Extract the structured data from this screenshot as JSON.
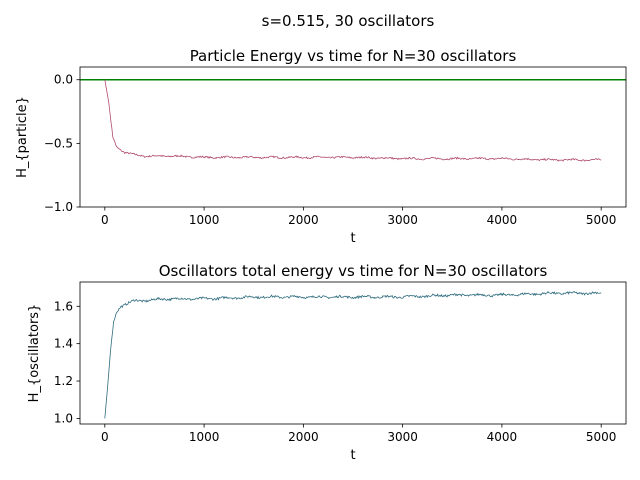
{
  "suptitle": "s=0.515, 30 oscillators",
  "chart_data": [
    {
      "type": "line",
      "title": "Particle Energy vs time for N=30 oscillators",
      "xlabel": "t",
      "ylabel": "H_{particle}",
      "xlim": [
        -250,
        5250
      ],
      "ylim": [
        -1.0,
        0.1
      ],
      "xticks": [
        0,
        1000,
        2000,
        3000,
        4000,
        5000
      ],
      "yticks": [
        -1.0,
        -0.5,
        0.0
      ],
      "ytick_labels": [
        "−1.0",
        "−0.5",
        "0.0"
      ],
      "hline": {
        "y": 0.0,
        "color": "#008000"
      },
      "series": [
        {
          "color": "#b04a6e",
          "x": [
            0,
            40,
            80,
            120,
            160,
            200,
            250,
            300,
            400,
            500,
            700,
            1000,
            1500,
            2000,
            2500,
            3000,
            3500,
            4000,
            4500,
            5000
          ],
          "y": [
            0.0,
            -0.18,
            -0.45,
            -0.53,
            -0.55,
            -0.57,
            -0.58,
            -0.59,
            -0.6,
            -0.6,
            -0.6,
            -0.61,
            -0.61,
            -0.61,
            -0.61,
            -0.62,
            -0.62,
            -0.62,
            -0.63,
            -0.63
          ]
        }
      ],
      "grid": false
    },
    {
      "type": "line",
      "title": "Oscillators total energy vs time for N=30 oscillators",
      "xlabel": "t",
      "ylabel": "H_{oscillators}",
      "xlim": [
        -250,
        5250
      ],
      "ylim": [
        0.97,
        1.73
      ],
      "xticks": [
        0,
        1000,
        2000,
        3000,
        4000,
        5000
      ],
      "yticks": [
        1.0,
        1.2,
        1.4,
        1.6
      ],
      "ytick_labels": [
        "1.0",
        "1.2",
        "1.4",
        "1.6"
      ],
      "series": [
        {
          "color": "#2e6b7e",
          "x": [
            0,
            30,
            60,
            90,
            120,
            160,
            200,
            300,
            400,
            600,
            1000,
            1500,
            2000,
            2500,
            3000,
            3500,
            4000,
            4500,
            4800,
            5000
          ],
          "y": [
            1.0,
            1.18,
            1.38,
            1.52,
            1.57,
            1.6,
            1.61,
            1.63,
            1.63,
            1.64,
            1.64,
            1.65,
            1.65,
            1.65,
            1.65,
            1.66,
            1.66,
            1.67,
            1.67,
            1.67
          ]
        }
      ],
      "grid": false
    }
  ]
}
